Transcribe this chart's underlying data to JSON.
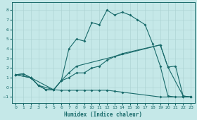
{
  "xlabel": "Humidex (Indice chaleur)",
  "bg_color": "#c5e8e8",
  "line_color": "#1a6b6b",
  "grid_color": "#afd4d4",
  "xlim": [
    -0.5,
    23.5
  ],
  "ylim": [
    -1.6,
    8.8
  ],
  "xticks": [
    0,
    1,
    2,
    3,
    4,
    5,
    6,
    7,
    8,
    9,
    10,
    11,
    12,
    13,
    14,
    15,
    16,
    17,
    18,
    19,
    20,
    21,
    22,
    23
  ],
  "yticks": [
    -1,
    0,
    1,
    2,
    3,
    4,
    5,
    6,
    7,
    8
  ],
  "line1_x": [
    0,
    1,
    2,
    3,
    4,
    5,
    6,
    7,
    8,
    9,
    10,
    11,
    12,
    13,
    14,
    15,
    16,
    17,
    18,
    19,
    20,
    21,
    22,
    23
  ],
  "line1_y": [
    1.3,
    1.4,
    1.0,
    0.2,
    -0.25,
    -0.25,
    0.7,
    4.0,
    5.0,
    4.8,
    6.7,
    6.5,
    8.0,
    7.5,
    7.8,
    7.5,
    7.0,
    6.5,
    4.5,
    2.2,
    -0.9,
    -1.0,
    -1.0,
    -1.0
  ],
  "line2_x": [
    0,
    2,
    3,
    5,
    6,
    7,
    8,
    19,
    20,
    22,
    23
  ],
  "line2_y": [
    1.3,
    1.0,
    0.2,
    -0.25,
    0.7,
    1.5,
    2.2,
    4.4,
    2.1,
    -0.9,
    -1.0
  ],
  "line3_x": [
    0,
    1,
    2,
    3,
    4,
    5,
    6,
    7,
    8,
    9,
    10,
    11,
    12,
    13,
    14,
    19,
    20,
    21,
    22,
    23
  ],
  "line3_y": [
    1.3,
    1.4,
    1.0,
    0.2,
    -0.25,
    -0.25,
    0.7,
    1.0,
    1.5,
    1.5,
    2.0,
    2.2,
    2.8,
    3.2,
    3.5,
    4.4,
    2.1,
    2.2,
    -0.9,
    -1.0
  ],
  "line4_x": [
    0,
    2,
    5,
    6,
    7,
    8,
    9,
    10,
    11,
    12,
    13,
    14,
    19,
    22,
    23
  ],
  "line4_y": [
    1.3,
    1.0,
    -0.25,
    -0.3,
    -0.3,
    -0.3,
    -0.3,
    -0.3,
    -0.3,
    -0.3,
    -0.4,
    -0.5,
    -1.0,
    -1.0,
    -1.0
  ]
}
